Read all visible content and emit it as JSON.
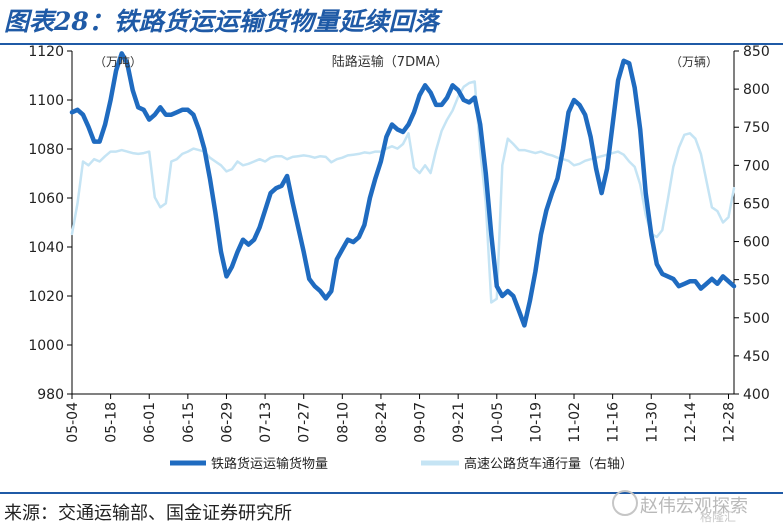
{
  "title": "图表28：铁路货运运输货物量延续回落",
  "source": "来源：交通运输部、国金证券研究所",
  "watermark": "赵伟宏观探索",
  "watermark_sub": "格隆汇",
  "colors": {
    "rail": "#1f6bc0",
    "highway": "#c5e4f4",
    "frame": "#1f5aa6"
  },
  "chart_data": {
    "type": "line",
    "title": "陆路运输（7DMA）",
    "y_left_unit": "（万吨）",
    "y_right_unit": "（万辆）",
    "ylim_left": [
      980,
      1120
    ],
    "ylim_right": [
      400,
      850
    ],
    "yticks_left": [
      980,
      1000,
      1020,
      1040,
      1060,
      1080,
      1100,
      1120
    ],
    "yticks_right": [
      400,
      450,
      500,
      550,
      600,
      650,
      700,
      750,
      800,
      850
    ],
    "x_range": [
      "05-04",
      "12-30"
    ],
    "x_ticks": [
      "05-04",
      "05-18",
      "06-01",
      "06-15",
      "06-29",
      "07-13",
      "07-27",
      "08-10",
      "08-24",
      "09-07",
      "09-21",
      "10-05",
      "10-19",
      "11-02",
      "11-16",
      "11-30",
      "12-14",
      "12-28"
    ],
    "grid": false,
    "legend_position": "bottom",
    "series": [
      {
        "name": "铁路货运运输货物量",
        "axis": "left",
        "points": [
          [
            "05-04",
            1095
          ],
          [
            "05-06",
            1096
          ],
          [
            "05-08",
            1094
          ],
          [
            "05-10",
            1089
          ],
          [
            "05-12",
            1083
          ],
          [
            "05-14",
            1083
          ],
          [
            "05-16",
            1090
          ],
          [
            "05-18",
            1100
          ],
          [
            "05-20",
            1112
          ],
          [
            "05-22",
            1119
          ],
          [
            "05-24",
            1115
          ],
          [
            "05-26",
            1104
          ],
          [
            "05-28",
            1097
          ],
          [
            "05-30",
            1096
          ],
          [
            "06-01",
            1092
          ],
          [
            "06-03",
            1094
          ],
          [
            "06-05",
            1097
          ],
          [
            "06-07",
            1094
          ],
          [
            "06-09",
            1094
          ],
          [
            "06-11",
            1095
          ],
          [
            "06-13",
            1096
          ],
          [
            "06-15",
            1096
          ],
          [
            "06-17",
            1094
          ],
          [
            "06-19",
            1088
          ],
          [
            "06-21",
            1080
          ],
          [
            "06-23",
            1068
          ],
          [
            "06-25",
            1054
          ],
          [
            "06-27",
            1038
          ],
          [
            "06-29",
            1028
          ],
          [
            "07-01",
            1032
          ],
          [
            "07-03",
            1038
          ],
          [
            "07-05",
            1043
          ],
          [
            "07-07",
            1041
          ],
          [
            "07-09",
            1043
          ],
          [
            "07-11",
            1048
          ],
          [
            "07-13",
            1055
          ],
          [
            "07-15",
            1062
          ],
          [
            "07-17",
            1064
          ],
          [
            "07-19",
            1065
          ],
          [
            "07-21",
            1069
          ],
          [
            "07-23",
            1058
          ],
          [
            "07-25",
            1048
          ],
          [
            "07-27",
            1038
          ],
          [
            "07-29",
            1027
          ],
          [
            "07-31",
            1024
          ],
          [
            "08-02",
            1022
          ],
          [
            "08-04",
            1019
          ],
          [
            "08-06",
            1022
          ],
          [
            "08-08",
            1035
          ],
          [
            "08-10",
            1039
          ],
          [
            "08-12",
            1043
          ],
          [
            "08-14",
            1042
          ],
          [
            "08-16",
            1044
          ],
          [
            "08-18",
            1049
          ],
          [
            "08-20",
            1060
          ],
          [
            "08-22",
            1068
          ],
          [
            "08-24",
            1075
          ],
          [
            "08-26",
            1085
          ],
          [
            "08-28",
            1090
          ],
          [
            "08-30",
            1088
          ],
          [
            "09-01",
            1087
          ],
          [
            "09-03",
            1090
          ],
          [
            "09-05",
            1095
          ],
          [
            "09-07",
            1102
          ],
          [
            "09-09",
            1106
          ],
          [
            "09-11",
            1103
          ],
          [
            "09-13",
            1098
          ],
          [
            "09-15",
            1098
          ],
          [
            "09-17",
            1101
          ],
          [
            "09-19",
            1106
          ],
          [
            "09-21",
            1104
          ],
          [
            "09-23",
            1100
          ],
          [
            "09-25",
            1099
          ],
          [
            "09-27",
            1101
          ],
          [
            "09-29",
            1090
          ],
          [
            "10-01",
            1070
          ],
          [
            "10-03",
            1045
          ],
          [
            "10-05",
            1024
          ],
          [
            "10-07",
            1020
          ],
          [
            "10-09",
            1022
          ],
          [
            "10-11",
            1020
          ],
          [
            "10-13",
            1014
          ],
          [
            "10-15",
            1008
          ],
          [
            "10-17",
            1018
          ],
          [
            "10-19",
            1030
          ],
          [
            "10-21",
            1045
          ],
          [
            "10-23",
            1055
          ],
          [
            "10-25",
            1062
          ],
          [
            "10-27",
            1068
          ],
          [
            "10-29",
            1080
          ],
          [
            "10-31",
            1095
          ],
          [
            "11-02",
            1100
          ],
          [
            "11-04",
            1098
          ],
          [
            "11-06",
            1094
          ],
          [
            "11-08",
            1085
          ],
          [
            "11-10",
            1072
          ],
          [
            "11-12",
            1062
          ],
          [
            "11-14",
            1072
          ],
          [
            "11-16",
            1090
          ],
          [
            "11-18",
            1108
          ],
          [
            "11-20",
            1116
          ],
          [
            "11-22",
            1115
          ],
          [
            "11-24",
            1105
          ],
          [
            "11-26",
            1088
          ],
          [
            "11-28",
            1062
          ],
          [
            "11-30",
            1045
          ],
          [
            "12-02",
            1033
          ],
          [
            "12-04",
            1029
          ],
          [
            "12-06",
            1028
          ],
          [
            "12-08",
            1027
          ],
          [
            "12-10",
            1024
          ],
          [
            "12-12",
            1025
          ],
          [
            "12-14",
            1026
          ],
          [
            "12-16",
            1026
          ],
          [
            "12-18",
            1023
          ],
          [
            "12-20",
            1025
          ],
          [
            "12-22",
            1027
          ],
          [
            "12-24",
            1025
          ],
          [
            "12-26",
            1028
          ],
          [
            "12-28",
            1026
          ],
          [
            "12-30",
            1024
          ]
        ]
      },
      {
        "name": "高速公路货车通行量（右轴）",
        "axis": "right",
        "points": [
          [
            "05-04",
            610
          ],
          [
            "05-06",
            650
          ],
          [
            "05-08",
            705
          ],
          [
            "05-10",
            700
          ],
          [
            "05-12",
            708
          ],
          [
            "05-14",
            705
          ],
          [
            "05-16",
            712
          ],
          [
            "05-18",
            718
          ],
          [
            "05-20",
            718
          ],
          [
            "05-22",
            720
          ],
          [
            "05-24",
            718
          ],
          [
            "05-26",
            716
          ],
          [
            "05-28",
            715
          ],
          [
            "05-30",
            716
          ],
          [
            "06-01",
            718
          ],
          [
            "06-03",
            658
          ],
          [
            "06-05",
            645
          ],
          [
            "06-07",
            650
          ],
          [
            "06-09",
            705
          ],
          [
            "06-11",
            708
          ],
          [
            "06-13",
            715
          ],
          [
            "06-15",
            718
          ],
          [
            "06-17",
            722
          ],
          [
            "06-19",
            720
          ],
          [
            "06-21",
            718
          ],
          [
            "06-23",
            710
          ],
          [
            "06-25",
            705
          ],
          [
            "06-27",
            700
          ],
          [
            "06-29",
            692
          ],
          [
            "07-01",
            695
          ],
          [
            "07-03",
            705
          ],
          [
            "07-05",
            700
          ],
          [
            "07-07",
            702
          ],
          [
            "07-09",
            705
          ],
          [
            "07-11",
            708
          ],
          [
            "07-13",
            705
          ],
          [
            "07-15",
            710
          ],
          [
            "07-17",
            712
          ],
          [
            "07-19",
            712
          ],
          [
            "07-21",
            708
          ],
          [
            "07-23",
            711
          ],
          [
            "07-25",
            712
          ],
          [
            "07-27",
            713
          ],
          [
            "07-29",
            712
          ],
          [
            "07-31",
            710
          ],
          [
            "08-02",
            712
          ],
          [
            "08-04",
            711
          ],
          [
            "08-06",
            704
          ],
          [
            "08-08",
            708
          ],
          [
            "08-10",
            710
          ],
          [
            "08-12",
            713
          ],
          [
            "08-14",
            714
          ],
          [
            "08-16",
            715
          ],
          [
            "08-18",
            717
          ],
          [
            "08-20",
            716
          ],
          [
            "08-22",
            718
          ],
          [
            "08-24",
            718
          ],
          [
            "08-26",
            722
          ],
          [
            "08-28",
            725
          ],
          [
            "08-30",
            722
          ],
          [
            "09-01",
            728
          ],
          [
            "09-03",
            742
          ],
          [
            "09-05",
            697
          ],
          [
            "09-07",
            690
          ],
          [
            "09-09",
            700
          ],
          [
            "09-11",
            690
          ],
          [
            "09-13",
            720
          ],
          [
            "09-15",
            745
          ],
          [
            "09-17",
            760
          ],
          [
            "09-19",
            772
          ],
          [
            "09-21",
            790
          ],
          [
            "09-23",
            803
          ],
          [
            "09-25",
            808
          ],
          [
            "09-27",
            810
          ],
          [
            "09-29",
            720
          ],
          [
            "10-01",
            650
          ],
          [
            "10-03",
            520
          ],
          [
            "10-05",
            525
          ],
          [
            "10-07",
            700
          ],
          [
            "10-09",
            735
          ],
          [
            "10-11",
            728
          ],
          [
            "10-13",
            720
          ],
          [
            "10-15",
            720
          ],
          [
            "10-17",
            718
          ],
          [
            "10-19",
            716
          ],
          [
            "10-21",
            718
          ],
          [
            "10-23",
            715
          ],
          [
            "10-25",
            713
          ],
          [
            "10-27",
            710
          ],
          [
            "10-29",
            708
          ],
          [
            "10-31",
            706
          ],
          [
            "11-02",
            700
          ],
          [
            "11-04",
            702
          ],
          [
            "11-06",
            706
          ],
          [
            "11-08",
            708
          ],
          [
            "11-10",
            710
          ],
          [
            "11-12",
            712
          ],
          [
            "11-14",
            714
          ],
          [
            "11-16",
            716
          ],
          [
            "11-18",
            718
          ],
          [
            "11-20",
            714
          ],
          [
            "11-22",
            705
          ],
          [
            "11-24",
            698
          ],
          [
            "11-26",
            675
          ],
          [
            "11-28",
            635
          ],
          [
            "11-30",
            610
          ],
          [
            "12-02",
            606
          ],
          [
            "12-04",
            615
          ],
          [
            "12-06",
            655
          ],
          [
            "12-08",
            698
          ],
          [
            "12-10",
            723
          ],
          [
            "12-12",
            740
          ],
          [
            "12-14",
            742
          ],
          [
            "12-16",
            735
          ],
          [
            "12-18",
            715
          ],
          [
            "12-20",
            680
          ],
          [
            "12-22",
            645
          ],
          [
            "12-24",
            640
          ],
          [
            "12-26",
            625
          ],
          [
            "12-28",
            632
          ],
          [
            "12-30",
            670
          ]
        ]
      }
    ]
  }
}
